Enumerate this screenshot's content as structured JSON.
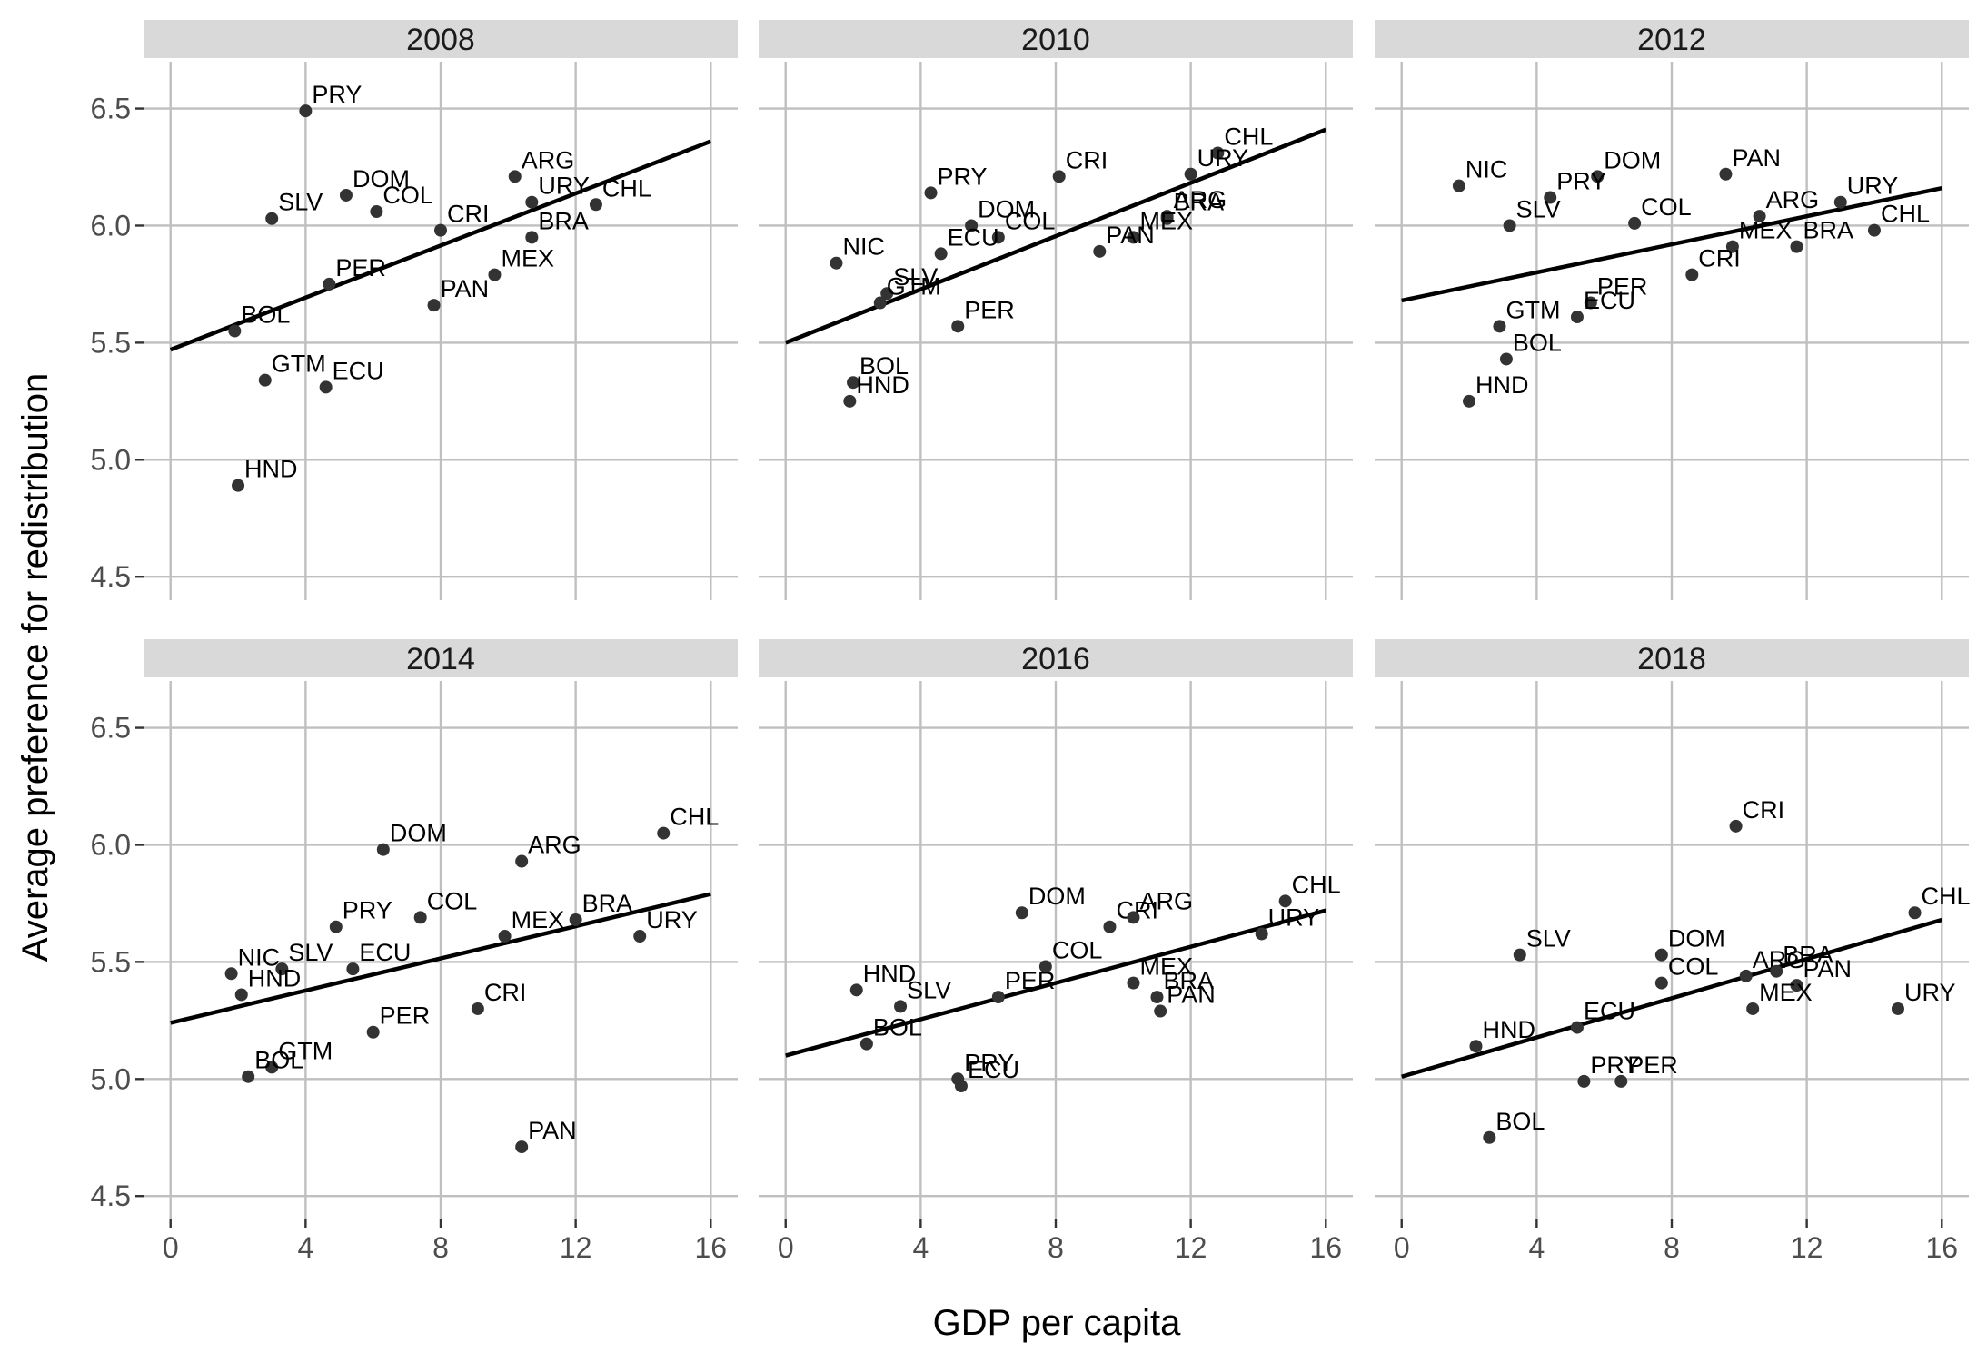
{
  "chart_data": {
    "type": "scatter",
    "title": "",
    "xlabel": "GDP per capita",
    "ylabel": "Average preference for redistribution",
    "xlim": [
      -0.8,
      16.8
    ],
    "ylim": [
      4.4,
      6.7
    ],
    "x_ticks": [
      0,
      4,
      8,
      12,
      16
    ],
    "y_ticks": [
      4.5,
      5.0,
      5.5,
      6.0,
      6.5
    ],
    "x_tick_labels": [
      "0",
      "4",
      "8",
      "12",
      "16"
    ],
    "y_tick_labels": [
      "4.5",
      "5.0",
      "5.5",
      "6.0",
      "6.5"
    ],
    "grid": true,
    "point_color": "#333333",
    "line_color": "#000000",
    "strip_color": "#d9d9d9",
    "grid_color": "#bfbfbf",
    "panels": [
      {
        "title": "2008",
        "fit": [
          [
            0,
            5.47
          ],
          [
            16,
            6.36
          ]
        ],
        "points": [
          {
            "label": "PRY",
            "x": 4.0,
            "y": 6.49
          },
          {
            "label": "SLV",
            "x": 3.0,
            "y": 6.03
          },
          {
            "label": "DOM",
            "x": 5.2,
            "y": 6.13
          },
          {
            "label": "COL",
            "x": 6.1,
            "y": 6.06
          },
          {
            "label": "ARG",
            "x": 10.2,
            "y": 6.21
          },
          {
            "label": "URY",
            "x": 10.7,
            "y": 6.1
          },
          {
            "label": "CHL",
            "x": 12.6,
            "y": 6.09
          },
          {
            "label": "BRA",
            "x": 10.7,
            "y": 5.95
          },
          {
            "label": "CRI",
            "x": 8.0,
            "y": 5.98
          },
          {
            "label": "MEX",
            "x": 9.6,
            "y": 5.79
          },
          {
            "label": "PER",
            "x": 4.7,
            "y": 5.75
          },
          {
            "label": "PAN",
            "x": 7.8,
            "y": 5.66
          },
          {
            "label": "BOL",
            "x": 1.9,
            "y": 5.55
          },
          {
            "label": "GTM",
            "x": 2.8,
            "y": 5.34
          },
          {
            "label": "ECU",
            "x": 4.6,
            "y": 5.31
          },
          {
            "label": "HND",
            "x": 2.0,
            "y": 4.89
          }
        ]
      },
      {
        "title": "2010",
        "fit": [
          [
            0,
            5.5
          ],
          [
            16,
            6.41
          ]
        ],
        "points": [
          {
            "label": "CHL",
            "x": 12.8,
            "y": 6.31
          },
          {
            "label": "URY",
            "x": 12.0,
            "y": 6.22
          },
          {
            "label": "CRI",
            "x": 8.1,
            "y": 6.21
          },
          {
            "label": "PRY",
            "x": 4.3,
            "y": 6.14
          },
          {
            "label": "BRA",
            "x": 11.3,
            "y": 6.03
          },
          {
            "label": "ARG",
            "x": 11.3,
            "y": 6.04
          },
          {
            "label": "DOM",
            "x": 5.5,
            "y": 6.0
          },
          {
            "label": "COL",
            "x": 6.3,
            "y": 5.95
          },
          {
            "label": "MEX",
            "x": 10.3,
            "y": 5.95
          },
          {
            "label": "ECU",
            "x": 4.6,
            "y": 5.88
          },
          {
            "label": "PAN",
            "x": 9.3,
            "y": 5.89
          },
          {
            "label": "NIC",
            "x": 1.5,
            "y": 5.84
          },
          {
            "label": "SLV",
            "x": 3.0,
            "y": 5.71
          },
          {
            "label": "GTM",
            "x": 2.8,
            "y": 5.67
          },
          {
            "label": "PER",
            "x": 5.1,
            "y": 5.57
          },
          {
            "label": "BOL",
            "x": 2.0,
            "y": 5.33
          },
          {
            "label": "HND",
            "x": 1.9,
            "y": 5.25
          }
        ]
      },
      {
        "title": "2012",
        "fit": [
          [
            0,
            5.68
          ],
          [
            16,
            6.16
          ]
        ],
        "points": [
          {
            "label": "NIC",
            "x": 1.7,
            "y": 6.17
          },
          {
            "label": "DOM",
            "x": 5.8,
            "y": 6.21
          },
          {
            "label": "PAN",
            "x": 9.6,
            "y": 6.22
          },
          {
            "label": "PRY",
            "x": 4.4,
            "y": 6.12
          },
          {
            "label": "URY",
            "x": 13.0,
            "y": 6.1
          },
          {
            "label": "SLV",
            "x": 3.2,
            "y": 6.0
          },
          {
            "label": "COL",
            "x": 6.9,
            "y": 6.01
          },
          {
            "label": "ARG",
            "x": 10.6,
            "y": 6.04
          },
          {
            "label": "CHL",
            "x": 14.0,
            "y": 5.98
          },
          {
            "label": "MEX",
            "x": 9.8,
            "y": 5.91
          },
          {
            "label": "BRA",
            "x": 11.7,
            "y": 5.91
          },
          {
            "label": "CRI",
            "x": 8.6,
            "y": 5.79
          },
          {
            "label": "PER",
            "x": 5.6,
            "y": 5.67
          },
          {
            "label": "ECU",
            "x": 5.2,
            "y": 5.61
          },
          {
            "label": "GTM",
            "x": 2.9,
            "y": 5.57
          },
          {
            "label": "BOL",
            "x": 3.1,
            "y": 5.43
          },
          {
            "label": "HND",
            "x": 2.0,
            "y": 5.25
          }
        ]
      },
      {
        "title": "2014",
        "fit": [
          [
            0,
            5.24
          ],
          [
            16,
            5.79
          ]
        ],
        "points": [
          {
            "label": "CHL",
            "x": 14.6,
            "y": 6.05
          },
          {
            "label": "DOM",
            "x": 6.3,
            "y": 5.98
          },
          {
            "label": "ARG",
            "x": 10.4,
            "y": 5.93
          },
          {
            "label": "COL",
            "x": 7.4,
            "y": 5.69
          },
          {
            "label": "PRY",
            "x": 4.9,
            "y": 5.65
          },
          {
            "label": "BRA",
            "x": 12.0,
            "y": 5.68
          },
          {
            "label": "MEX",
            "x": 9.9,
            "y": 5.61
          },
          {
            "label": "URY",
            "x": 13.9,
            "y": 5.61
          },
          {
            "label": "NIC",
            "x": 1.8,
            "y": 5.45
          },
          {
            "label": "SLV",
            "x": 3.3,
            "y": 5.47
          },
          {
            "label": "ECU",
            "x": 5.4,
            "y": 5.47
          },
          {
            "label": "HND",
            "x": 2.1,
            "y": 5.36
          },
          {
            "label": "CRI",
            "x": 9.1,
            "y": 5.3
          },
          {
            "label": "PER",
            "x": 6.0,
            "y": 5.2
          },
          {
            "label": "GTM",
            "x": 3.0,
            "y": 5.05
          },
          {
            "label": "BOL",
            "x": 2.3,
            "y": 5.01
          },
          {
            "label": "PAN",
            "x": 10.4,
            "y": 4.71
          }
        ]
      },
      {
        "title": "2016",
        "fit": [
          [
            0,
            5.1
          ],
          [
            16,
            5.72
          ]
        ],
        "points": [
          {
            "label": "CHL",
            "x": 14.8,
            "y": 5.76
          },
          {
            "label": "DOM",
            "x": 7.0,
            "y": 5.71
          },
          {
            "label": "CRI",
            "x": 9.6,
            "y": 5.65
          },
          {
            "label": "ARG",
            "x": 10.3,
            "y": 5.69
          },
          {
            "label": "URY",
            "x": 14.1,
            "y": 5.62
          },
          {
            "label": "COL",
            "x": 7.7,
            "y": 5.48
          },
          {
            "label": "MEX",
            "x": 10.3,
            "y": 5.41
          },
          {
            "label": "HND",
            "x": 2.1,
            "y": 5.38
          },
          {
            "label": "PER",
            "x": 6.3,
            "y": 5.35
          },
          {
            "label": "BRA",
            "x": 11.0,
            "y": 5.35
          },
          {
            "label": "SLV",
            "x": 3.4,
            "y": 5.31
          },
          {
            "label": "PAN",
            "x": 11.1,
            "y": 5.29
          },
          {
            "label": "BOL",
            "x": 2.4,
            "y": 5.15
          },
          {
            "label": "PRY",
            "x": 5.1,
            "y": 5.0
          },
          {
            "label": "ECU",
            "x": 5.2,
            "y": 4.97
          }
        ]
      },
      {
        "title": "2018",
        "fit": [
          [
            0,
            5.01
          ],
          [
            16,
            5.68
          ]
        ],
        "points": [
          {
            "label": "CRI",
            "x": 9.9,
            "y": 6.08
          },
          {
            "label": "CHL",
            "x": 15.2,
            "y": 5.71
          },
          {
            "label": "SLV",
            "x": 3.5,
            "y": 5.53
          },
          {
            "label": "DOM",
            "x": 7.7,
            "y": 5.53
          },
          {
            "label": "COL",
            "x": 7.7,
            "y": 5.41
          },
          {
            "label": "ARG",
            "x": 10.2,
            "y": 5.44
          },
          {
            "label": "BRA",
            "x": 11.1,
            "y": 5.46
          },
          {
            "label": "PAN",
            "x": 11.7,
            "y": 5.4
          },
          {
            "label": "MEX",
            "x": 10.4,
            "y": 5.3
          },
          {
            "label": "URY",
            "x": 14.7,
            "y": 5.3
          },
          {
            "label": "ECU",
            "x": 5.2,
            "y": 5.22
          },
          {
            "label": "HND",
            "x": 2.2,
            "y": 5.14
          },
          {
            "label": "PRY",
            "x": 5.4,
            "y": 4.99
          },
          {
            "label": "PER",
            "x": 6.5,
            "y": 4.99
          },
          {
            "label": "BOL",
            "x": 2.6,
            "y": 4.75
          }
        ]
      }
    ]
  }
}
